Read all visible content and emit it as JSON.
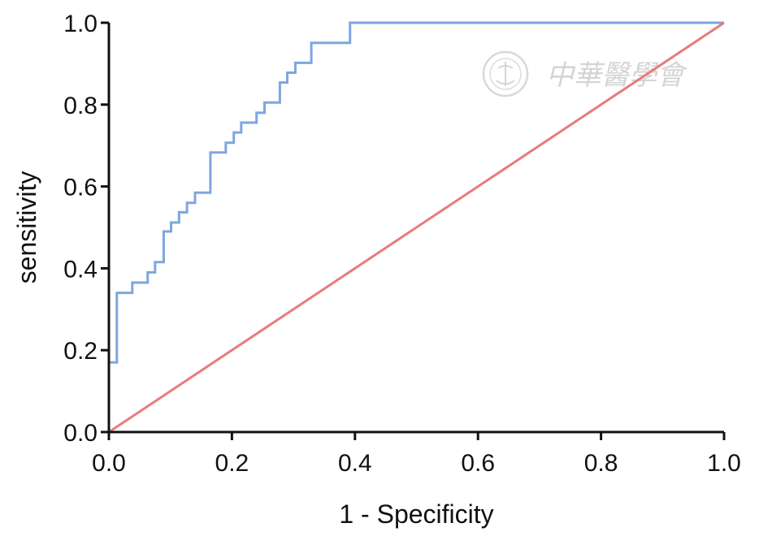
{
  "chart_data": {
    "type": "line",
    "title": "",
    "xlabel": "1 - Specificity",
    "ylabel": "sensitivity",
    "xlim": [
      0.0,
      1.0
    ],
    "ylim": [
      0.0,
      1.0
    ],
    "x_ticks": [
      "0.0",
      "0.2",
      "0.4",
      "0.6",
      "0.8",
      "1.0"
    ],
    "y_ticks": [
      "0.0",
      "0.2",
      "0.4",
      "0.6",
      "0.8",
      "1.0"
    ],
    "grid": false,
    "legend": "none",
    "series": [
      {
        "color": "#7ea6e0",
        "step": true,
        "x": [
          0.0,
          0.0,
          0.013,
          0.013,
          0.038,
          0.038,
          0.063,
          0.063,
          0.075,
          0.075,
          0.089,
          0.089,
          0.101,
          0.101,
          0.114,
          0.114,
          0.127,
          0.127,
          0.14,
          0.14,
          0.165,
          0.165,
          0.19,
          0.19,
          0.203,
          0.203,
          0.215,
          0.215,
          0.24,
          0.24,
          0.253,
          0.253,
          0.278,
          0.278,
          0.29,
          0.29,
          0.303,
          0.303,
          0.329,
          0.329,
          0.392,
          0.392,
          1.0
        ],
        "y": [
          0.0,
          0.17,
          0.17,
          0.34,
          0.34,
          0.365,
          0.365,
          0.39,
          0.39,
          0.415,
          0.415,
          0.49,
          0.49,
          0.512,
          0.512,
          0.537,
          0.537,
          0.56,
          0.56,
          0.585,
          0.585,
          0.683,
          0.683,
          0.707,
          0.707,
          0.732,
          0.732,
          0.756,
          0.756,
          0.78,
          0.78,
          0.805,
          0.805,
          0.854,
          0.854,
          0.878,
          0.878,
          0.902,
          0.902,
          0.951,
          0.951,
          1.0,
          1.0
        ]
      },
      {
        "color": "#e87b7b",
        "step": false,
        "x": [
          0.0,
          1.0
        ],
        "y": [
          0.0,
          1.0
        ]
      }
    ]
  },
  "watermark": {
    "text": "中華醫學會",
    "color": "#d4d4d4"
  }
}
